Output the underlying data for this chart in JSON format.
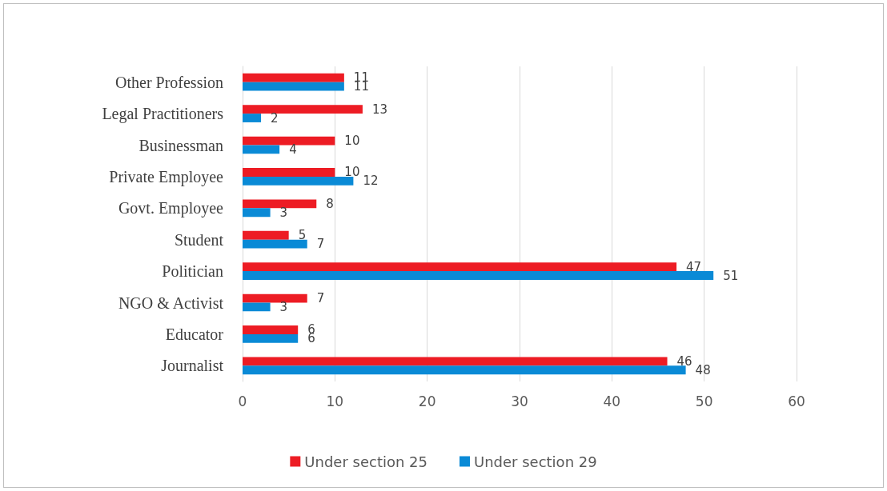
{
  "chart_data": {
    "type": "bar",
    "orientation": "horizontal",
    "categories": [
      "Other Profession",
      "Legal Practitioners",
      "Businessman",
      "Private Employee",
      "Govt. Employee",
      "Student",
      "Politician",
      "NGO & Activist",
      "Educator",
      "Journalist"
    ],
    "series": [
      {
        "name": "Under section 25",
        "color": "#ed1c24",
        "values": [
          11,
          13,
          10,
          10,
          8,
          5,
          47,
          7,
          6,
          46
        ]
      },
      {
        "name": "Under section 29",
        "color": "#0a8ad6",
        "values": [
          11,
          2,
          4,
          12,
          3,
          7,
          51,
          3,
          6,
          48
        ]
      }
    ],
    "xlim": [
      0,
      60
    ],
    "xticks": [
      0,
      10,
      20,
      30,
      40,
      50,
      60
    ],
    "grid": "x",
    "legend": "bottom",
    "data_labels": true
  }
}
